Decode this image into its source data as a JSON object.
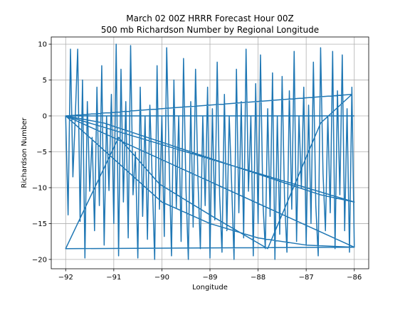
{
  "chart_data": {
    "type": "line",
    "title_line1": "March 02 00Z HRRR Forecast Hour 00Z",
    "title_line2": "500 mb Richardson Number by Regional Longitude",
    "xlabel": "Longitude",
    "ylabel": "Richardson Number",
    "xlim": [
      -92.3,
      -85.7
    ],
    "ylim": [
      -21.3,
      11.0
    ],
    "xticks": [
      -92,
      -91,
      -90,
      -89,
      -88,
      -87,
      -86
    ],
    "yticks": [
      -20,
      -15,
      -10,
      -5,
      0,
      5,
      10
    ],
    "grid": true,
    "line_color": "#1f77b4",
    "series": [
      {
        "x": [
          -92.0,
          -91.95,
          -91.9,
          -91.85,
          -91.8,
          -91.75,
          -91.7,
          -91.65,
          -91.6,
          -91.55,
          -91.5,
          -91.45,
          -91.4,
          -91.35,
          -91.3,
          -91.25,
          -91.2,
          -91.15,
          -91.1,
          -91.05,
          -91.0,
          -90.95,
          -90.9,
          -90.85,
          -90.8,
          -90.75,
          -90.7,
          -90.65,
          -90.6,
          -90.55,
          -90.5,
          -90.45,
          -90.4,
          -90.35,
          -90.3,
          -90.25,
          -90.2,
          -90.15,
          -90.1,
          -90.05,
          -90.0,
          -89.95,
          -89.9,
          -89.85,
          -89.8,
          -89.75,
          -89.7,
          -89.65,
          -89.6,
          -89.55,
          -89.5,
          -89.45,
          -89.4,
          -89.35,
          -89.3,
          -89.25,
          -89.2,
          -89.15,
          -89.1,
          -89.05,
          -89.0,
          -88.95,
          -88.9,
          -88.85,
          -88.8,
          -88.75,
          -88.7,
          -88.65,
          -88.6,
          -88.55,
          -88.5,
          -88.45,
          -88.4,
          -88.35,
          -88.3,
          -88.25,
          -88.2,
          -88.15,
          -88.1,
          -88.05,
          -88.0,
          -87.95,
          -87.9,
          -87.85,
          -87.8,
          -87.75,
          -87.7,
          -87.65,
          -87.6,
          -87.55,
          -87.5,
          -87.45,
          -87.4,
          -87.35,
          -87.3,
          -87.25,
          -87.2,
          -87.15,
          -87.1,
          -87.05,
          -87.0,
          -86.95,
          -86.9,
          -86.85,
          -86.8,
          -86.75,
          -86.7,
          -86.65,
          -86.6,
          -86.55,
          -86.5,
          -86.45,
          -86.4,
          -86.35,
          -86.3,
          -86.25,
          -86.2,
          -86.15,
          -86.1,
          -86.05,
          -86.0,
          -92.0,
          -90.9,
          -90.05,
          -88.95,
          -87.8,
          -86.7,
          -86.05,
          -92.0,
          -91.2,
          -90.3,
          -89.4,
          -88.5,
          -87.6,
          -86.7,
          -86.0,
          -92.0,
          -91.0,
          -90.0,
          -89.0,
          -88.0,
          -87.0,
          -86.0,
          -92.0,
          -86.0
        ],
        "y": [
          0.0,
          -13.8,
          9.3,
          -8.5,
          0.0,
          9.3,
          -14.7,
          5.0,
          -19.8,
          2.0,
          -10.5,
          -3.0,
          -16.0,
          4.0,
          -12.5,
          7.0,
          -18.0,
          0.0,
          -10.4,
          3.0,
          -15.0,
          10.0,
          -19.5,
          6.5,
          -12.0,
          2.0,
          -17.0,
          9.8,
          -11.0,
          -5.0,
          -19.8,
          4.0,
          -14.0,
          0.0,
          -17.2,
          1.5,
          -9.0,
          -20.0,
          7.0,
          -13.0,
          0.0,
          -16.8,
          9.5,
          -6.0,
          -19.5,
          5.0,
          -12.8,
          0.0,
          -17.5,
          8.0,
          -10.0,
          -20.0,
          2.0,
          -15.5,
          6.5,
          -9.0,
          -18.5,
          0.0,
          -12.5,
          4.0,
          -19.8,
          1.0,
          -14.5,
          7.5,
          -11.0,
          -19.0,
          3.0,
          -16.0,
          0.0,
          -9.5,
          -20.0,
          6.5,
          -13.5,
          2.0,
          -17.0,
          9.3,
          -10.5,
          0.0,
          -19.5,
          4.5,
          -15.0,
          8.5,
          -12.0,
          -18.5,
          1.0,
          -14.0,
          6.0,
          -20.0,
          0.0,
          -16.5,
          5.5,
          -11.5,
          -19.0,
          3.5,
          -13.0,
          9.0,
          -17.5,
          0.0,
          -10.0,
          4.0,
          -18.0,
          1.5,
          -15.0,
          7.5,
          -12.5,
          -19.5,
          9.5,
          -8.0,
          -16.0,
          0.0,
          -13.5,
          9.0,
          -18.5,
          3.5,
          -11.0,
          8.5,
          -16.0,
          1.0,
          -19.0,
          4.0,
          -18.3,
          -18.5,
          -3.0,
          -9.5,
          -14.0,
          -18.5,
          -1.0,
          3.0,
          0.0,
          -1.0,
          -3.0,
          -5.0,
          -7.0,
          -9.0,
          -11.0,
          -12.0,
          0.0,
          -6.0,
          -12.0,
          -15.0,
          -17.0,
          -18.0,
          -18.3,
          0.0,
          0.0
        ]
      }
    ]
  }
}
